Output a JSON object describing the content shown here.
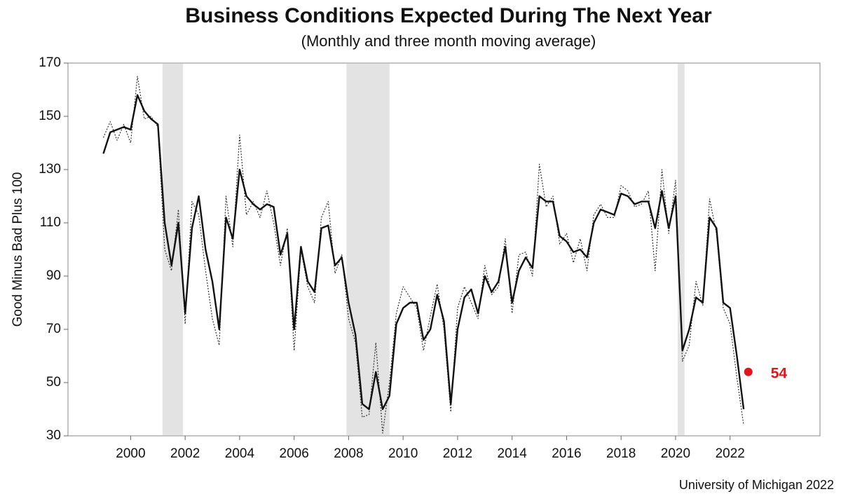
{
  "chart_data": {
    "type": "line",
    "title": "Business Conditions Expected During The Next Year",
    "subtitle": "(Monthly and three month moving average)",
    "ylabel": "Good Minus Bad Plus 100",
    "source": "University of Michigan 2022",
    "xlim": [
      1997.7,
      2025.3
    ],
    "ylim": [
      30,
      170
    ],
    "xticks": [
      2000,
      2002,
      2004,
      2006,
      2008,
      2010,
      2012,
      2014,
      2016,
      2018,
      2020,
      2022
    ],
    "yticks": [
      30,
      50,
      70,
      90,
      110,
      130,
      150,
      170
    ],
    "recessions": [
      [
        2001.17,
        2001.92
      ],
      [
        2007.92,
        2009.5
      ],
      [
        2020.08,
        2020.33
      ]
    ],
    "recession_color": "#e3e3e3",
    "x": [
      1999,
      1999.25,
      1999.5,
      1999.75,
      2000,
      2000.25,
      2000.5,
      2000.75,
      2001,
      2001.25,
      2001.5,
      2001.75,
      2002,
      2002.25,
      2002.5,
      2002.75,
      2003,
      2003.25,
      2003.5,
      2003.75,
      2004,
      2004.25,
      2004.5,
      2004.75,
      2005,
      2005.25,
      2005.5,
      2005.75,
      2006,
      2006.25,
      2006.5,
      2006.75,
      2007,
      2007.25,
      2007.5,
      2007.75,
      2008,
      2008.25,
      2008.5,
      2008.75,
      2009,
      2009.25,
      2009.5,
      2009.75,
      2010,
      2010.25,
      2010.5,
      2010.75,
      2011,
      2011.25,
      2011.5,
      2011.75,
      2012,
      2012.25,
      2012.5,
      2012.75,
      2013,
      2013.25,
      2013.5,
      2013.75,
      2014,
      2014.25,
      2014.5,
      2014.75,
      2015,
      2015.25,
      2015.5,
      2015.75,
      2016,
      2016.25,
      2016.5,
      2016.75,
      2017,
      2017.25,
      2017.5,
      2017.75,
      2018,
      2018.25,
      2018.5,
      2018.75,
      2019,
      2019.25,
      2019.5,
      2019.75,
      2020,
      2020.25,
      2020.5,
      2020.75,
      2021,
      2021.25,
      2021.5,
      2021.75,
      2022,
      2022.25,
      2022.5
    ],
    "series": [
      {
        "style": "dotted",
        "color": "#333333",
        "values": [
          142,
          148,
          141,
          147,
          140,
          165,
          149,
          150,
          146,
          100,
          92,
          115,
          72,
          118,
          113,
          92,
          74,
          64,
          120,
          101,
          143,
          113,
          118,
          112,
          122,
          110,
          94,
          108,
          62,
          100,
          86,
          80,
          112,
          118,
          91,
          98,
          74,
          65,
          37,
          38,
          65,
          31,
          50,
          76,
          86,
          82,
          78,
          62,
          75,
          87,
          70,
          39,
          78,
          86,
          80,
          74,
          94,
          83,
          86,
          104,
          76,
          98,
          99,
          90,
          132,
          116,
          120,
          102,
          106,
          95,
          104,
          92,
          113,
          117,
          112,
          112,
          124,
          122,
          116,
          117,
          122,
          92,
          130,
          106,
          126,
          58,
          64,
          88,
          79,
          119,
          106,
          78,
          72,
          52,
          34
        ]
      },
      {
        "style": "solid",
        "color": "#111111",
        "values": [
          136,
          144,
          145,
          146,
          145,
          158,
          152,
          149,
          147,
          110,
          94,
          110,
          76,
          108,
          120,
          100,
          88,
          70,
          112,
          104,
          130,
          120,
          117,
          115,
          117,
          116,
          98,
          106,
          70,
          101,
          88,
          84,
          108,
          109,
          94,
          97,
          80,
          68,
          42,
          40,
          54,
          40,
          45,
          72,
          78,
          80,
          80,
          66,
          70,
          83,
          73,
          42,
          70,
          82,
          85,
          76,
          90,
          84,
          88,
          101,
          80,
          92,
          97,
          93,
          120,
          118,
          118,
          105,
          103,
          99,
          100,
          97,
          110,
          115,
          114,
          113,
          121,
          120,
          117,
          118,
          118,
          108,
          122,
          108,
          120,
          62,
          70,
          82,
          80,
          112,
          108,
          80,
          78,
          60,
          40
        ]
      }
    ],
    "annotation": {
      "x": 2022.67,
      "value": 54,
      "label": "54",
      "color": "#e0161b"
    }
  }
}
